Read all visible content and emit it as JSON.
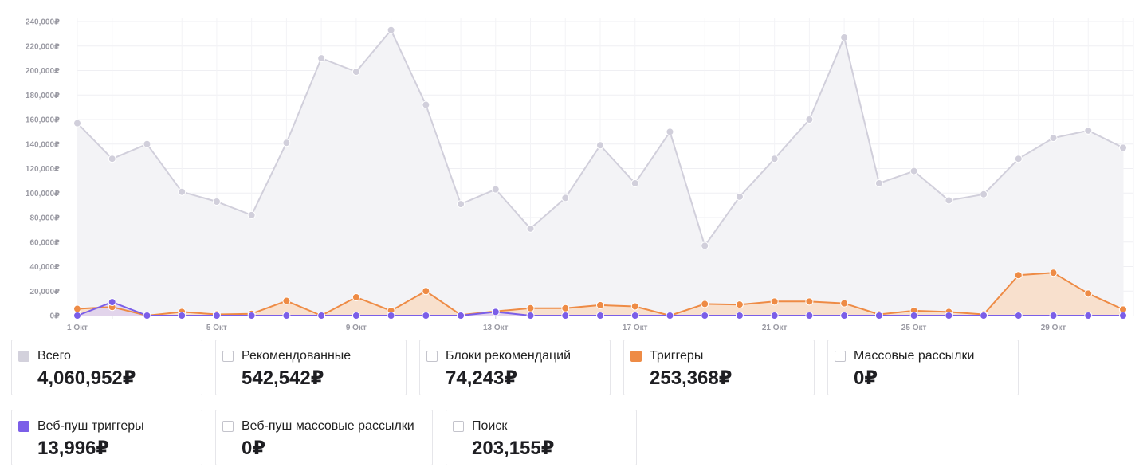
{
  "chart_data": {
    "type": "area",
    "xticks": [
      "1 Окт",
      "5 Окт",
      "9 Окт",
      "13 Окт",
      "17 Окт",
      "21 Окт",
      "25 Окт",
      "29 Окт"
    ],
    "yticks": [
      "0₽",
      "20,000₽",
      "40,000₽",
      "60,000₽",
      "80,000₽",
      "100,000₽",
      "120,000₽",
      "140,000₽",
      "160,000₽",
      "180,000₽",
      "200,000₽",
      "220,000₽",
      "240,000₽"
    ],
    "ylim": [
      0,
      240000
    ],
    "x": [
      "1 Окт",
      "2 Окт",
      "3 Окт",
      "4 Окт",
      "5 Окт",
      "6 Окт",
      "7 Окт",
      "8 Окт",
      "9 Окт",
      "10 Окт",
      "11 Окт",
      "12 Окт",
      "13 Окт",
      "14 Окт",
      "15 Окт",
      "16 Окт",
      "17 Окт",
      "18 Окт",
      "19 Окт",
      "20 Окт",
      "21 Окт",
      "22 Окт",
      "23 Окт",
      "24 Окт",
      "25 Окт",
      "26 Окт",
      "27 Окт",
      "28 Окт",
      "29 Окт",
      "30 Окт",
      "31 Окт"
    ],
    "series": [
      {
        "name": "Всего",
        "color": "#cfcdd9",
        "values": [
          157000,
          128000,
          140000,
          101000,
          93000,
          82000,
          141000,
          210000,
          199000,
          233000,
          172000,
          91000,
          103000,
          71000,
          96000,
          139000,
          108000,
          150000,
          57000,
          97000,
          128000,
          160000,
          227000,
          108000,
          118000,
          94000,
          99000,
          128000,
          145000,
          151000,
          137000
        ]
      },
      {
        "name": "Триггеры",
        "color": "#ee8b45",
        "values": [
          5500,
          7000,
          0,
          3000,
          1000,
          1500,
          12000,
          0,
          15000,
          4000,
          20000,
          500,
          3500,
          6000,
          6000,
          8500,
          7500,
          0,
          9500,
          9000,
          11500,
          11500,
          10000,
          1000,
          4000,
          3000,
          1000,
          33000,
          35000,
          18000,
          5000
        ]
      },
      {
        "name": "Веб-пуш триггеры",
        "color": "#7b5ee8",
        "values": [
          0,
          11000,
          0,
          0,
          0,
          0,
          0,
          0,
          0,
          0,
          0,
          0,
          3000,
          0,
          0,
          0,
          0,
          0,
          0,
          0,
          0,
          0,
          0,
          0,
          0,
          0,
          0,
          0,
          0,
          0,
          0
        ]
      }
    ]
  },
  "legend": [
    {
      "label": "Всего",
      "value": "4,060,952₽",
      "checked": true,
      "color": "#d3d1dc"
    },
    {
      "label": "Рекомендованные",
      "value": "542,542₽",
      "checked": false
    },
    {
      "label": "Блоки рекомендаций",
      "value": "74,243₽",
      "checked": false
    },
    {
      "label": "Триггеры",
      "value": "253,368₽",
      "checked": true,
      "color": "#ee8b45"
    },
    {
      "label": "Массовые рассылки",
      "value": "0₽",
      "checked": false
    },
    {
      "label": "Веб-пуш триггеры",
      "value": "13,996₽",
      "checked": true,
      "color": "#7b5ee8"
    },
    {
      "label": "Веб-пуш массовые рассылки",
      "value": "0₽",
      "checked": false
    },
    {
      "label": "Поиск",
      "value": "203,155₽",
      "checked": false
    }
  ]
}
